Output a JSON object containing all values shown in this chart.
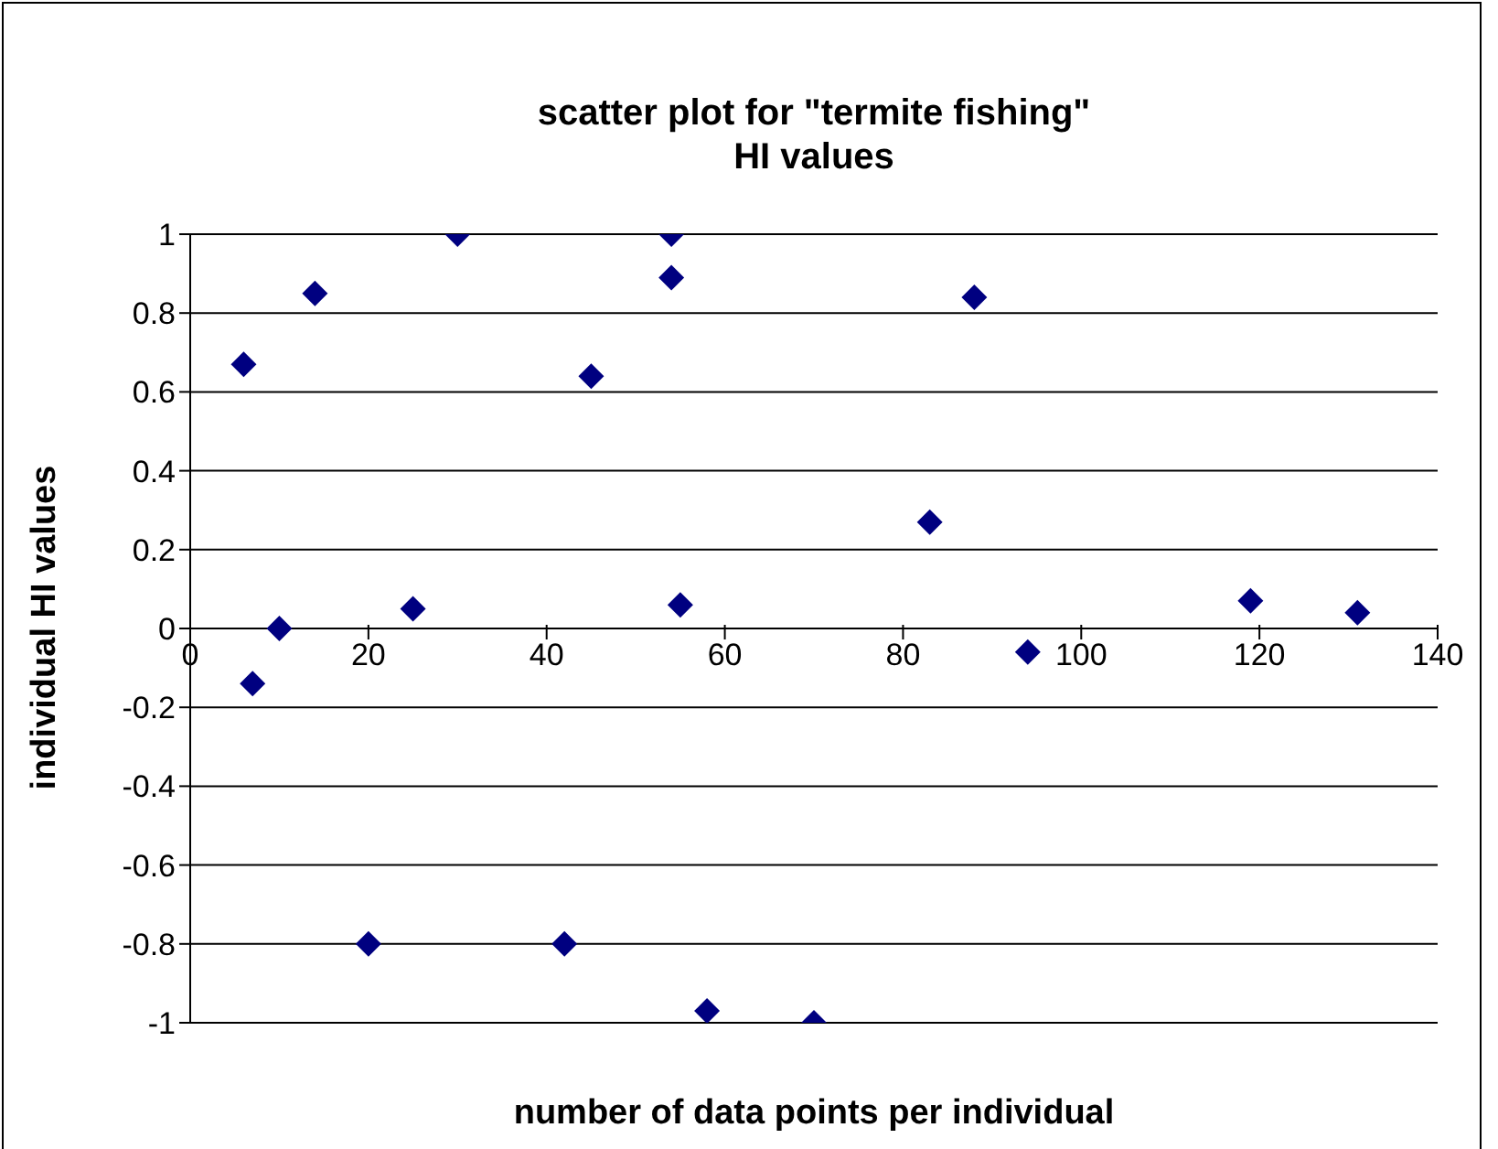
{
  "chart_data": {
    "type": "scatter",
    "title": "scatter plot for \"termite fishing\"",
    "subtitle": "HI values",
    "xlabel": "number of data points per individual",
    "ylabel": "individual HI values",
    "x": [
      6,
      7,
      10,
      14,
      20,
      25,
      30,
      42,
      45,
      54,
      54,
      55,
      58,
      70,
      83,
      88,
      94,
      119,
      131
    ],
    "series": [
      {
        "color": "#000080",
        "values": [
          0.67,
          -0.14,
          0,
          0.85,
          -0.8,
          0.05,
          1,
          -0.8,
          0.64,
          1,
          0.89,
          0.06,
          -0.97,
          -1,
          0.27,
          0.84,
          -0.06,
          0.07,
          0.04
        ]
      }
    ],
    "xlim": [
      0,
      140
    ],
    "xticks": [
      0,
      20,
      40,
      60,
      80,
      100,
      120,
      140
    ],
    "ylim": [
      -1,
      1
    ],
    "yticks": [
      -1,
      -0.8,
      -0.6,
      -0.4,
      -0.2,
      0,
      0.2,
      0.4,
      0.6,
      0.8,
      1
    ],
    "grid": "y",
    "marker": "diamond"
  }
}
